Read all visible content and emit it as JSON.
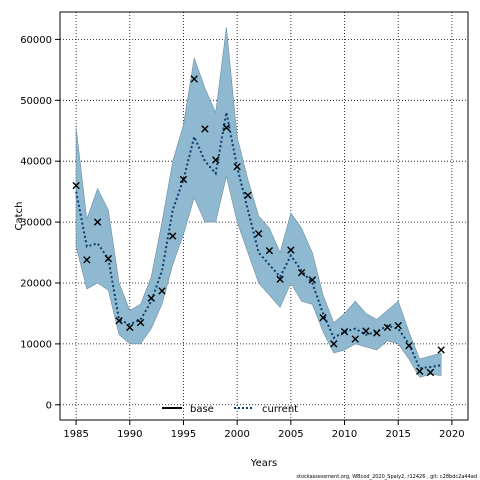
{
  "chart_data": {
    "type": "line",
    "xlabel": "Years",
    "ylabel": "Catch",
    "xlim": [
      1983.5,
      2021.5
    ],
    "ylim": [
      -2500,
      64500
    ],
    "xticks": [
      1985,
      1990,
      1995,
      2000,
      2005,
      2010,
      2015,
      2020
    ],
    "yticks": [
      0,
      10000,
      20000,
      30000,
      40000,
      50000,
      60000
    ],
    "grid": true,
    "legend": {
      "position": "bottom-center",
      "entries": [
        "base",
        "current"
      ]
    },
    "colors": {
      "band": "#8fb9d0",
      "band_edge": "#6f8fa3",
      "current_line": "#0b3d6b",
      "base_line": "#000000",
      "grid": "#000000"
    },
    "x": [
      1985,
      1986,
      1987,
      1988,
      1989,
      1990,
      1991,
      1992,
      1993,
      1994,
      1995,
      1996,
      1997,
      1998,
      1999,
      2000,
      2001,
      2002,
      2003,
      2004,
      2005,
      2006,
      2007,
      2008,
      2009,
      2010,
      2011,
      2012,
      2013,
      2014,
      2015,
      2016,
      2017,
      2018,
      2019
    ],
    "series": [
      {
        "name": "current",
        "style": "dotted",
        "values": [
          35000,
          26000,
          26500,
          24000,
          14000,
          13200,
          14000,
          17000,
          22000,
          32000,
          37000,
          44000,
          40000,
          38000,
          48000,
          39000,
          32000,
          25000,
          23000,
          21000,
          24500,
          22000,
          20000,
          15000,
          11000,
          12000,
          12500,
          11500,
          12000,
          13000,
          12500,
          10000,
          6000,
          6200,
          6500
        ]
      }
    ],
    "band": {
      "name": "current",
      "upper": [
        45500,
        30500,
        35500,
        32000,
        20000,
        15500,
        16500,
        21000,
        30000,
        40000,
        46000,
        57000,
        52000,
        48000,
        62000,
        44000,
        37000,
        31000,
        29000,
        25000,
        31500,
        29000,
        25000,
        18000,
        13500,
        15000,
        17000,
        15000,
        14000,
        15500,
        17000,
        12000,
        7500,
        8000,
        8500
      ],
      "lower": [
        26000,
        19000,
        20000,
        18800,
        11500,
        10000,
        10000,
        12500,
        16500,
        23000,
        28000,
        34000,
        30000,
        30000,
        37500,
        30000,
        25000,
        20000,
        18000,
        16000,
        20000,
        17000,
        16500,
        12000,
        8500,
        9000,
        10000,
        9500,
        9000,
        10500,
        10000,
        7500,
        4500,
        5000,
        4800
      ]
    },
    "observed": {
      "name": "observed",
      "values": [
        36000,
        23800,
        30000,
        24000,
        13800,
        12700,
        13500,
        17500,
        18700,
        27700,
        37000,
        53500,
        45300,
        40200,
        45500,
        39100,
        34400,
        28100,
        25300,
        20600,
        25400,
        21700,
        20500,
        14300,
        10000,
        12000,
        10800,
        12100,
        11800,
        12700,
        13000,
        9700,
        5500,
        5300,
        9000
      ]
    }
  },
  "footer": {
    "text": "stockassessment.org,  WBcod_2020_Spaly2,  r12426 ,  git:  c28bdc2a44ad"
  }
}
